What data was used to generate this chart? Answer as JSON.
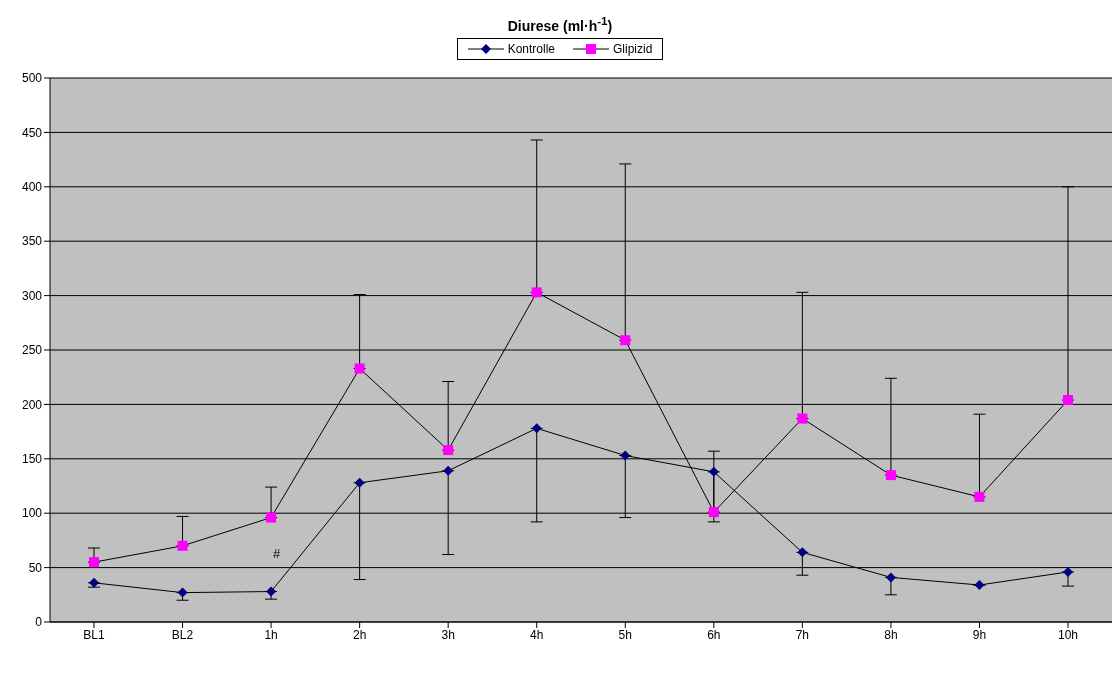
{
  "chart_data": {
    "type": "line",
    "title": "Diurese (ml·h$^{-1}$)",
    "categories": [
      "BL1",
      "BL2",
      "1h",
      "2h",
      "3h",
      "4h",
      "5h",
      "6h",
      "7h",
      "8h",
      "9h",
      "10h"
    ],
    "series": [
      {
        "name": "Kontrolle",
        "color": "#000080",
        "marker": "diamond",
        "values": [
          36,
          27,
          28,
          128,
          139,
          178,
          153,
          138,
          64,
          41,
          34,
          46
        ],
        "errors": [
          [
            32,
            36
          ],
          [
            20,
            27
          ],
          [
            21,
            28
          ],
          [
            39,
            128
          ],
          [
            62,
            139
          ],
          [
            92,
            178
          ],
          [
            96,
            153
          ],
          [
            92,
            138
          ],
          [
            43,
            64
          ],
          [
            25,
            41
          ],
          null,
          [
            33,
            46
          ]
        ]
      },
      {
        "name": "Glipizid",
        "color": "#ff00ff",
        "marker": "square",
        "values": [
          55,
          70,
          96,
          233,
          158,
          303,
          259,
          101,
          187,
          135,
          115,
          204
        ],
        "errors": [
          [
            55,
            68
          ],
          [
            70,
            97
          ],
          [
            96,
            124
          ],
          [
            233,
            301
          ],
          [
            158,
            221
          ],
          [
            303,
            443
          ],
          [
            259,
            421
          ],
          [
            101,
            157
          ],
          [
            187,
            303
          ],
          [
            135,
            224
          ],
          [
            115,
            191
          ],
          [
            204,
            400
          ]
        ]
      }
    ],
    "ylim": [
      0,
      500
    ],
    "yticks": [
      0,
      50,
      100,
      150,
      200,
      250,
      300,
      350,
      400,
      450,
      500
    ],
    "grid": "y",
    "legend": "top",
    "line_style": "solid",
    "annotations": [
      "#"
    ]
  }
}
